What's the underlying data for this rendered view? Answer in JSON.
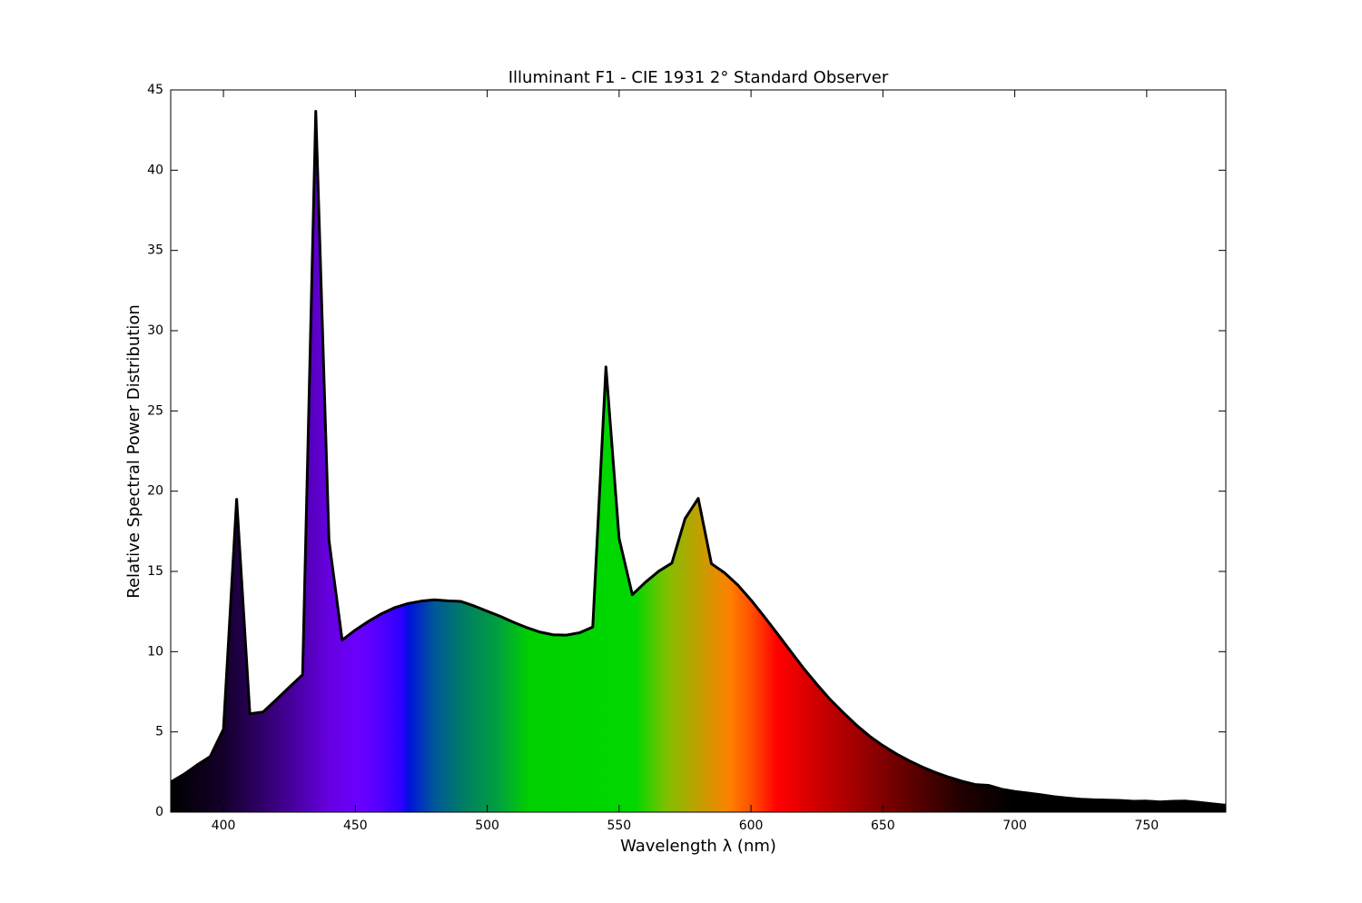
{
  "chart_data": {
    "type": "area",
    "title": "Illuminant F1 - CIE 1931 2° Standard Observer",
    "x_label": "Wavelength λ (nm)",
    "y_label": "Relative Spectral Power Distribution",
    "x": [
      380,
      385,
      390,
      395,
      400,
      405,
      410,
      415,
      420,
      425,
      430,
      435,
      440,
      445,
      450,
      455,
      460,
      465,
      470,
      475,
      480,
      485,
      490,
      495,
      500,
      505,
      510,
      515,
      520,
      525,
      530,
      535,
      540,
      545,
      550,
      555,
      560,
      565,
      570,
      575,
      580,
      585,
      590,
      595,
      600,
      605,
      610,
      615,
      620,
      625,
      630,
      635,
      640,
      645,
      650,
      655,
      660,
      665,
      670,
      675,
      680,
      685,
      690,
      695,
      700,
      705,
      710,
      715,
      720,
      725,
      730,
      735,
      740,
      745,
      750,
      755,
      760,
      765,
      770,
      775,
      780
    ],
    "values": [
      1.87,
      2.36,
      2.94,
      3.47,
      5.17,
      19.49,
      6.13,
      6.24,
      7.01,
      7.79,
      8.56,
      43.67,
      16.94,
      10.72,
      11.35,
      11.89,
      12.37,
      12.75,
      13.0,
      13.15,
      13.23,
      13.17,
      13.13,
      12.85,
      12.52,
      12.2,
      11.83,
      11.5,
      11.22,
      11.05,
      11.03,
      11.18,
      11.53,
      27.74,
      17.05,
      13.55,
      14.33,
      15.01,
      15.52,
      18.29,
      19.55,
      15.48,
      14.91,
      14.15,
      13.22,
      12.19,
      11.12,
      10.03,
      8.95,
      7.96,
      7.02,
      6.2,
      5.42,
      4.73,
      4.15,
      3.64,
      3.2,
      2.81,
      2.47,
      2.18,
      1.93,
      1.72,
      1.67,
      1.43,
      1.29,
      1.19,
      1.08,
      0.96,
      0.88,
      0.81,
      0.77,
      0.75,
      0.73,
      0.68,
      0.69,
      0.64,
      0.68,
      0.69,
      0.61,
      0.52,
      0.43
    ],
    "color": "#000000",
    "xlim": [
      380,
      780
    ],
    "xticks": [
      400,
      450,
      500,
      550,
      600,
      650,
      700,
      750
    ],
    "ylim": [
      0,
      45
    ],
    "yticks": [
      0,
      5,
      10,
      15,
      20,
      25,
      30,
      35,
      40,
      45
    ]
  }
}
